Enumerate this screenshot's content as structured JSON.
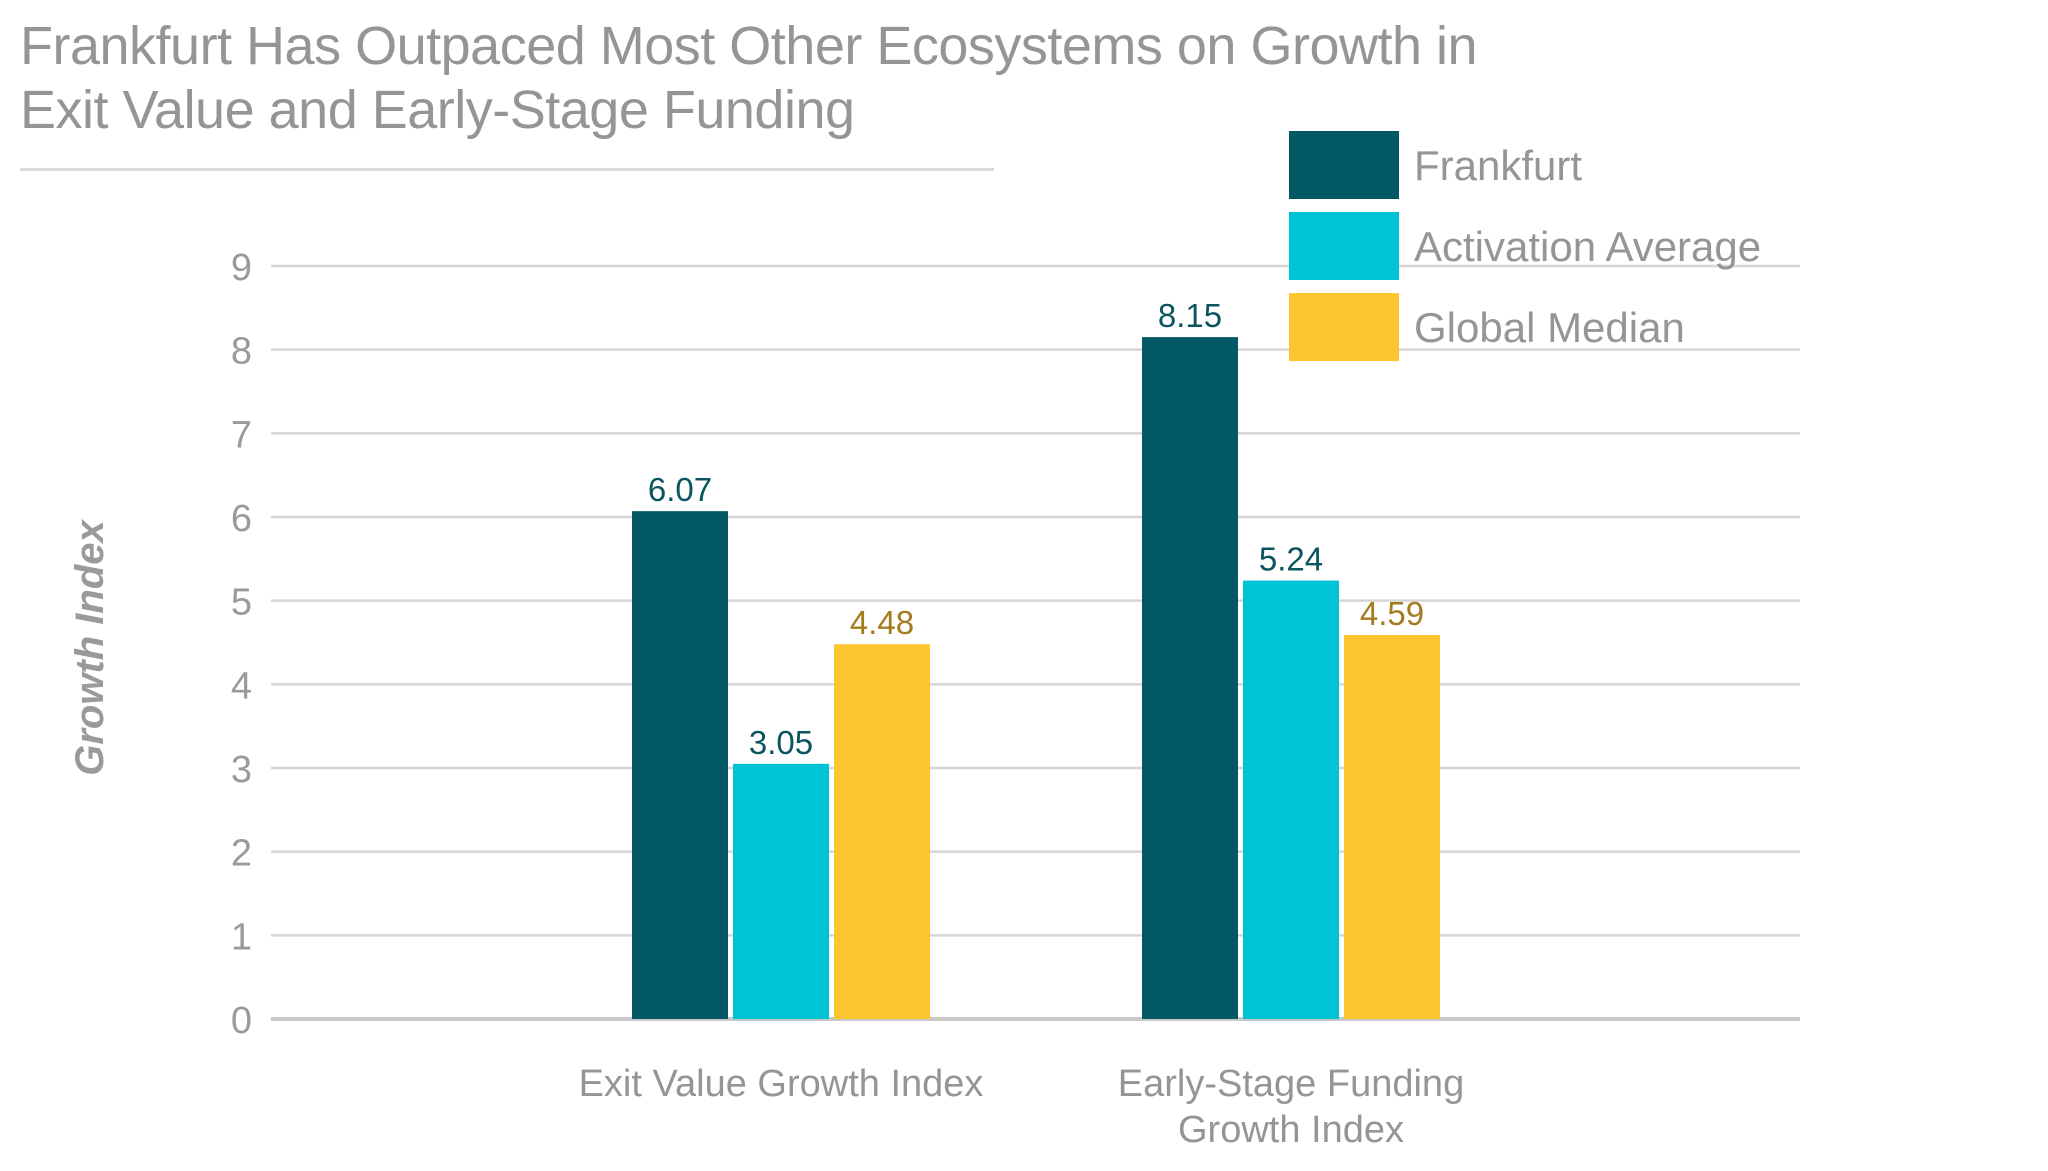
{
  "title_lines": [
    "Frankfurt Has Outpaced Most Other Ecosystems on Growth in",
    "Exit Value and Early-Stage Funding"
  ],
  "chart_data": {
    "type": "bar",
    "title": "Frankfurt Has Outpaced Most Other Ecosystems on Growth in Exit Value and Early-Stage Funding",
    "xlabel": "",
    "ylabel": "Growth Index",
    "ylim": [
      0,
      9
    ],
    "yticks": [
      0,
      1,
      2,
      3,
      4,
      5,
      6,
      7,
      8,
      9
    ],
    "grid": true,
    "legend_position": "top-right",
    "categories": [
      [
        "Exit Value Growth Index"
      ],
      [
        "Early-Stage Funding",
        "Growth Index"
      ]
    ],
    "series": [
      {
        "name": "Frankfurt",
        "color": "#025864",
        "label_color": "#0b5561",
        "values": [
          6.07,
          8.15
        ]
      },
      {
        "name": "Activation Average",
        "color": "#00c3d5",
        "label_color": "#0b5561",
        "values": [
          3.05,
          5.24
        ]
      },
      {
        "name": "Global Median",
        "color": "#fdc52f",
        "label_color": "#a37c1e",
        "values": [
          4.48,
          4.59
        ]
      }
    ]
  }
}
